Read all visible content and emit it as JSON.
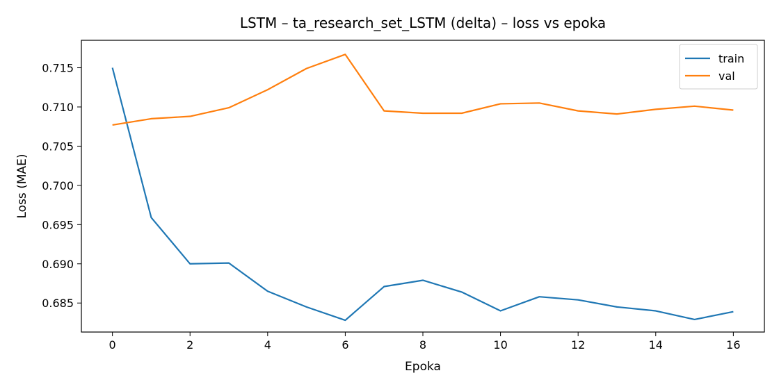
{
  "chart_data": {
    "type": "line",
    "title": "LSTM – ta_research_set_LSTM (delta) – loss vs epoka",
    "xlabel": "Epoka",
    "ylabel": "Loss (MAE)",
    "x": [
      0,
      1,
      2,
      3,
      4,
      5,
      6,
      7,
      8,
      9,
      10,
      11,
      12,
      13,
      14,
      15,
      16
    ],
    "xlim": [
      -0.8,
      16.8
    ],
    "ylim": [
      0.6813,
      0.7185
    ],
    "xticks": [
      "0",
      "2",
      "4",
      "6",
      "8",
      "10",
      "12",
      "14",
      "16"
    ],
    "yticks": [
      "0.685",
      "0.690",
      "0.695",
      "0.700",
      "0.705",
      "0.710",
      "0.715"
    ],
    "grid": false,
    "legend_position": "top-right",
    "series": [
      {
        "name": "train",
        "color": "#1f77b4",
        "values": [
          0.715,
          0.6959,
          0.69,
          0.6901,
          0.6865,
          0.6845,
          0.6828,
          0.6871,
          0.6879,
          0.6864,
          0.684,
          0.6858,
          0.6854,
          0.6845,
          0.684,
          0.6829,
          0.6839
        ]
      },
      {
        "name": "val",
        "color": "#ff7f0e",
        "values": [
          0.7077,
          0.7085,
          0.7088,
          0.7099,
          0.7122,
          0.7149,
          0.7167,
          0.7095,
          0.7092,
          0.7092,
          0.7104,
          0.7105,
          0.7095,
          0.7091,
          0.7097,
          0.7101,
          0.7096
        ]
      }
    ]
  }
}
